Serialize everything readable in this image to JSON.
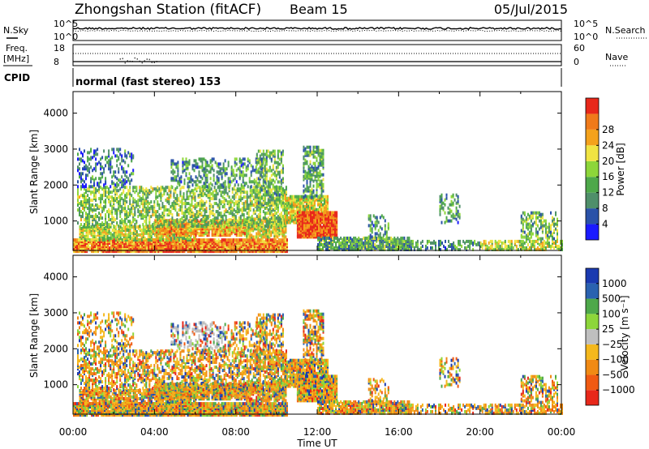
{
  "header": {
    "station": "Zhongshan Station (fitACF)",
    "beam": "Beam 15",
    "date": "05/Jul/2015"
  },
  "summary_panels": {
    "nsky_label": "N.Sky",
    "nsearch_label": "N.Search",
    "freq_label_1": "Freq.",
    "freq_label_2": "[MHz]",
    "nave_label": "Nave",
    "cpid_label": "CPID",
    "noise_ticks": [
      "10^5",
      "10^0"
    ],
    "noise_right_ticks": [
      "10^5",
      "10^0"
    ],
    "freq_ticks": [
      "18",
      "8"
    ],
    "nave_ticks": [
      "60",
      "0"
    ],
    "cpid_text": "normal (fast stereo) 153"
  },
  "colors": {
    "power": [
      "#1a1aff",
      "#2a52a8",
      "#4f8f6a",
      "#4ea84a",
      "#8dd63a",
      "#f0e442",
      "#f4a21c",
      "#f07a1a",
      "#e8281a"
    ],
    "velocity": [
      "#e8281a",
      "#f05a12",
      "#f08a14",
      "#f4b81c",
      "#bfbfbf",
      "#8dd63a",
      "#4ea84a",
      "#2a62b0",
      "#1a3ab0"
    ]
  },
  "chart_data": [
    {
      "type": "heatmap",
      "name": "power",
      "ylabel": "Slant Range [km]",
      "xlabel": "",
      "x_ticks": [
        "00:00",
        "04:00",
        "08:00",
        "12:00",
        "16:00",
        "20:00",
        "00:00"
      ],
      "y_ticks": [
        1000,
        2000,
        3000,
        4000
      ],
      "xlim_hours": [
        0,
        24
      ],
      "ylim_km": [
        180,
        4600
      ],
      "colorbar_label": "Power [dB]",
      "colorbar_ticks": [
        "4",
        "8",
        "12",
        "16",
        "20",
        "24",
        "28"
      ],
      "colorbar_range": [
        0,
        30
      ]
    },
    {
      "type": "heatmap",
      "name": "velocity",
      "ylabel": "Slant Range [km]",
      "xlabel": "Time UT",
      "x_ticks": [
        "00:00",
        "04:00",
        "08:00",
        "12:00",
        "16:00",
        "20:00",
        "00:00"
      ],
      "y_ticks": [
        1000,
        2000,
        3000,
        4000
      ],
      "xlim_hours": [
        0,
        24
      ],
      "ylim_km": [
        180,
        4600
      ],
      "colorbar_label": "Velocity [m s⁻¹]",
      "colorbar_ticks": [
        "1000",
        "500",
        "100",
        "25",
        "−25",
        "−100",
        "−500",
        "−1000"
      ]
    }
  ]
}
